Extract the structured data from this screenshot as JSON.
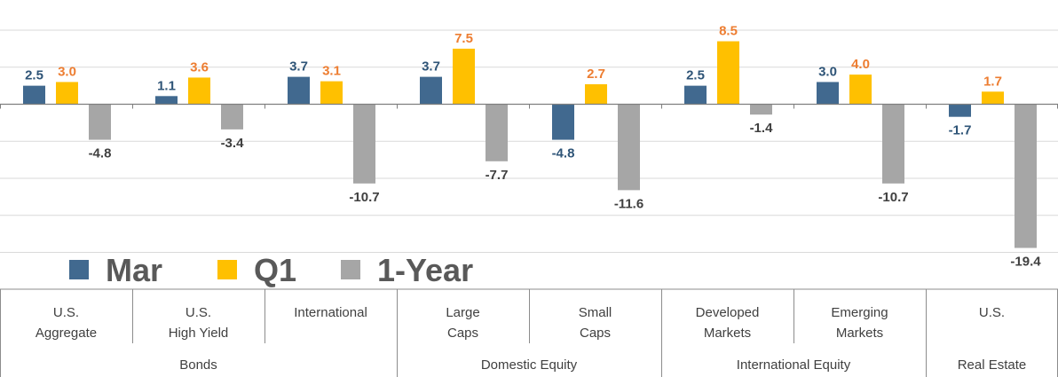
{
  "chart_data": {
    "type": "bar",
    "title": "",
    "xlabel": "",
    "ylabel": "",
    "ylim": [
      -20,
      10
    ],
    "grid": true,
    "categories": [
      [
        "U.S.",
        "Aggregate"
      ],
      [
        "U.S.",
        "High Yield"
      ],
      [
        "International"
      ],
      [
        "Large",
        "Caps"
      ],
      [
        "Small",
        "Caps"
      ],
      [
        "Developed",
        "Markets"
      ],
      [
        "Emerging",
        "Markets"
      ],
      [
        "U.S."
      ]
    ],
    "groups": [
      {
        "label": "Bonds",
        "span": 3
      },
      {
        "label": "Domestic Equity",
        "span": 2
      },
      {
        "label": "International Equity",
        "span": 2
      },
      {
        "label": "Real Estate",
        "span": 1
      }
    ],
    "series": [
      {
        "name": "Mar",
        "color": "#41698f",
        "label_color": "#2e5477",
        "values": [
          2.5,
          1.1,
          3.7,
          3.7,
          -4.8,
          2.5,
          3.0,
          -1.7
        ]
      },
      {
        "name": "Q1",
        "color": "#ffc000",
        "label_color": "#ed7d31",
        "values": [
          3.0,
          3.6,
          3.1,
          7.5,
          2.7,
          8.5,
          4.0,
          1.7
        ]
      },
      {
        "name": "1-Year",
        "color": "#a6a6a6",
        "label_color": "#404040",
        "values": [
          -4.8,
          -3.4,
          -10.7,
          -7.7,
          -11.6,
          -1.4,
          -10.7,
          -19.4
        ]
      }
    ],
    "legend": {
      "position": "bottom-left",
      "items": [
        "Mar",
        "Q1",
        "1-Year"
      ]
    }
  }
}
